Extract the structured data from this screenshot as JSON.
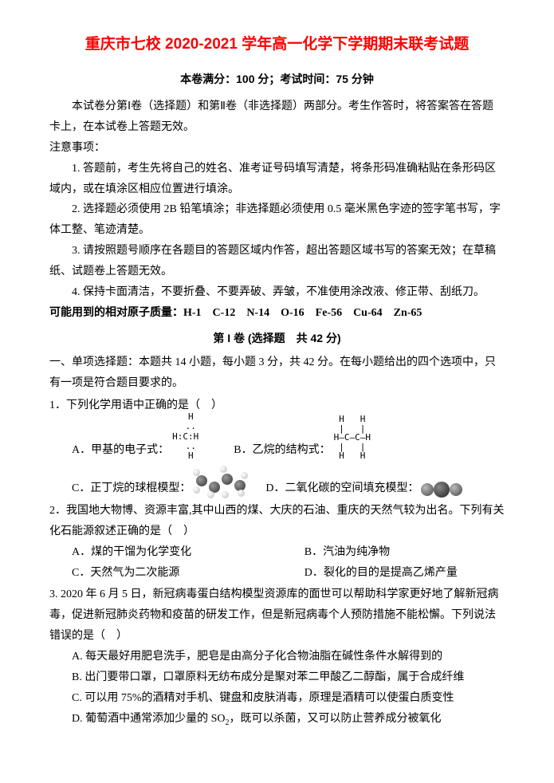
{
  "title": "重庆市七校 2020-2021 学年高一化学下学期期末联考试题",
  "subtitle": "本卷满分：100 分；考试时间：75 分钟",
  "intro": "本试卷分第Ⅰ卷（选择题）和第Ⅱ卷（非选择题）两部分。考生作答时，将答案答在答题卡上，在本试卷上答题无效。",
  "noticeHeader": "注意事项：",
  "notices": [
    "1. 答题前，考生先将自己的姓名、准考证号码填写清楚，将条形码准确粘贴在条形码区域内，或在填涂区相应位置进行填涂。",
    "2. 选择题必须使用 2B 铅笔填涂；非选择题必须使用 0.5 毫米黑色字迹的签字笔书写，字体工整、笔迹清楚。",
    "3. 请按照题号顺序在各题目的答题区域内作答，超出答题区域书写的答案无效；在草稿纸、试题卷上答题无效。",
    "4. 保持卡面清洁，不要折叠、不要弄破、弄皱，不准使用涂改液、修正带、刮纸刀。"
  ],
  "atomicMass": "可能用到的相对原子质量：H-1　C-12　N-14　O-16　Fe-56　Cu-64　Zn-65",
  "sectionI": "第 I 卷 (选择题　共 42 分)",
  "sectionDesc": "一、单项选择题：本题共 14 小题，每小题 3 分，共 42 分。在每小题给出的四个选项中，只有一项是符合题目要求的。",
  "q1": {
    "stem": "1．下列化学用语中正确的是（　）",
    "a": "A．甲基的电子式：",
    "b": "B．乙烷的结构式：",
    "c": "C．正丁烷的球棍模型：",
    "d": "D．二氧化碳的空间填充模型："
  },
  "electronDot": "  H\n  ..\nH:C:H\n  ..\n  H",
  "ethane": "H   H\n|   |\nH—C—C—H\n|   |\nH   H",
  "q2": {
    "stem": "2．我国地大物博、资源丰富,其中山西的煤、大庆的石油、重庆的天然气较为出名。下列有关化石能源叙述正确的是（　）",
    "a": "A．煤的干馏为化学变化",
    "b": "B．汽油为纯净物",
    "c": "C．天然气为二次能源",
    "d": "D．裂化的目的是提高乙烯产量"
  },
  "q3": {
    "stem": "3. 2020 年 6 月 5 日，新冠病毒蛋白结构模型资源库的面世可以帮助科学家更好地了解新冠病毒，促进新冠肺炎药物和疫苗的研发工作，但是新冠病毒个人预防措施不能松懈。下列说法错误的是（　）",
    "a": "A. 每天最好用肥皂洗手，肥皂是由高分子化合物油脂在碱性条件水解得到的",
    "b": "B. 出门要带口罩，口罩原料无纺布成分是聚对苯二甲酸乙二醇酯，属于合成纤维",
    "c": "C. 可以用 75%的酒精对手机、键盘和皮肤消毒，原理是酒精可以使蛋白质变性",
    "d_prefix": "D. 葡萄酒中通常添加少量的 SO",
    "d_sub": "2",
    "d_suffix": "，既可以杀菌，又可以防止营养成分被氧化"
  }
}
